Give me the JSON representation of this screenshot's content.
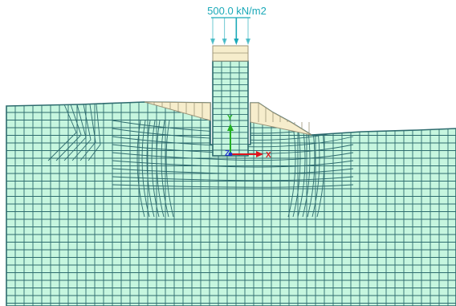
{
  "viewport": {
    "load": {
      "label": "500.0 kN/m2",
      "arrow_count": 4
    },
    "axes": {
      "x_label": "X",
      "y_label": "Y",
      "z_label": "Z"
    },
    "colors": {
      "soil_fill": "#c6f6df",
      "mesh_line": "#2d6b6e",
      "interface_fill": "#f6edcc",
      "interface_line": "#9c9478",
      "load_color": "#1aa9b8",
      "x_axis": "#e0141c",
      "y_axis": "#22b022",
      "z_axis": "#2035c8"
    }
  }
}
